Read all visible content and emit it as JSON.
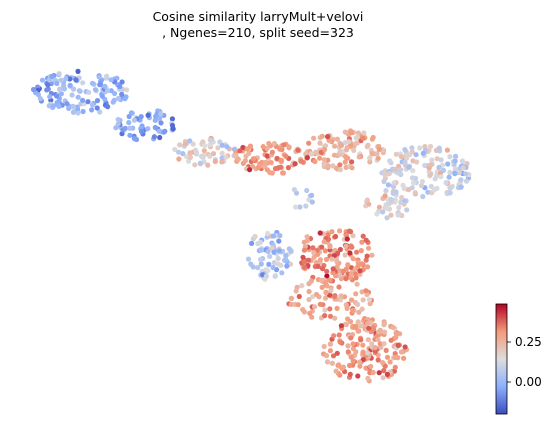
{
  "chart_data": {
    "type": "scatter",
    "title": "Cosine similarity larryMult+velovi",
    "subtitle": ", Ngenes=210, split seed=323",
    "xlabel": "",
    "ylabel": "",
    "grid": false,
    "axes_visible": false,
    "colormap": "coolwarm",
    "color_stops": [
      "#3b4cc0",
      "#8db0fe",
      "#dddddd",
      "#f49a7b",
      "#b40426"
    ],
    "colorbar": {
      "range": [
        -0.12,
        0.48
      ],
      "ticks": [
        0.0,
        0.25
      ],
      "tick_labels": [
        "0.00",
        "0.25"
      ],
      "placement": "bottom-right"
    }
  }
}
